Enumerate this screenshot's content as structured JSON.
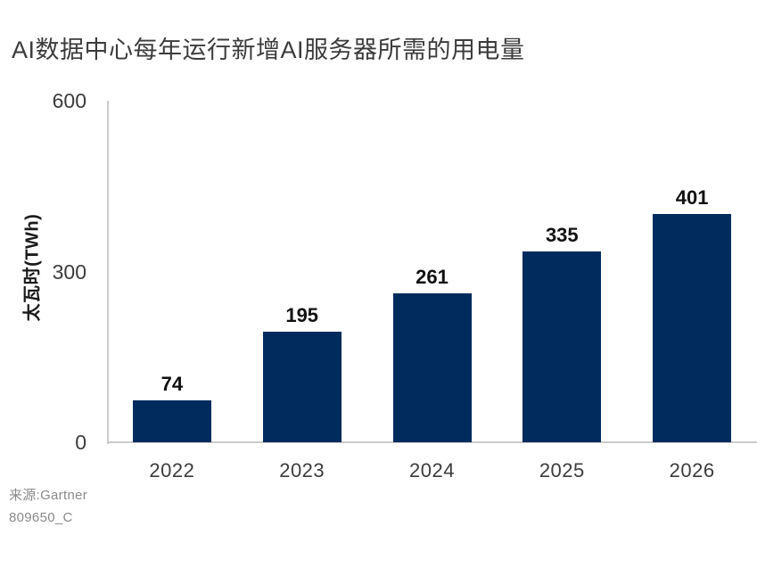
{
  "title": "AI数据中心每年运行新增AI服务器所需的用电量",
  "colors": {
    "bar": "#002B5C",
    "axis": "#CBCBCB",
    "title_text": "#3B3B3B",
    "value_label_text": "#111111",
    "tick_text": "#3C3C3C",
    "source_text": "#8A8A8A"
  },
  "source": {
    "line1": "来源:Gartner",
    "line2": "809650_C"
  },
  "chart_data": {
    "type": "bar",
    "categories": [
      "2022",
      "2023",
      "2024",
      "2025",
      "2026"
    ],
    "values": [
      74,
      195,
      261,
      335,
      401
    ],
    "title": "AI数据中心每年运行新增AI服务器所需的用电量",
    "xlabel": "",
    "ylabel": "太瓦时(TWh)",
    "ylim": [
      0,
      600
    ],
    "yticks": [
      0,
      300,
      600
    ],
    "grid": false,
    "legend": "none",
    "data_labels": true,
    "source": "来源:Gartner",
    "doc_code": "809650_C"
  }
}
